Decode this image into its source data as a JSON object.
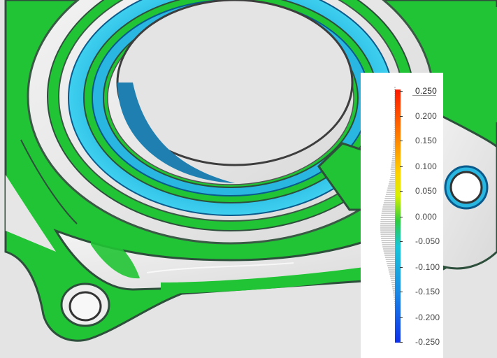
{
  "colors": {
    "background": "#e4e4e4",
    "surface_nominal": "#22c734",
    "surface_negative": "#1fb8e6",
    "surface_unmeasured": "#eeeeee",
    "surface_edge_dark": "#2d4f3b"
  },
  "legend": {
    "max_value": "0.250",
    "tick_labels": [
      "0.200",
      "0.150",
      "0.100",
      "0.050",
      "0.000",
      "-0.050",
      "-0.100",
      "-0.150",
      "-0.200",
      "-0.250"
    ],
    "scale_colors": [
      "#ff1a00",
      "#ff7a00",
      "#ffd000",
      "#d8f000",
      "#2ecc40",
      "#18c6d9",
      "#1a8ae6",
      "#1030e8"
    ]
  }
}
